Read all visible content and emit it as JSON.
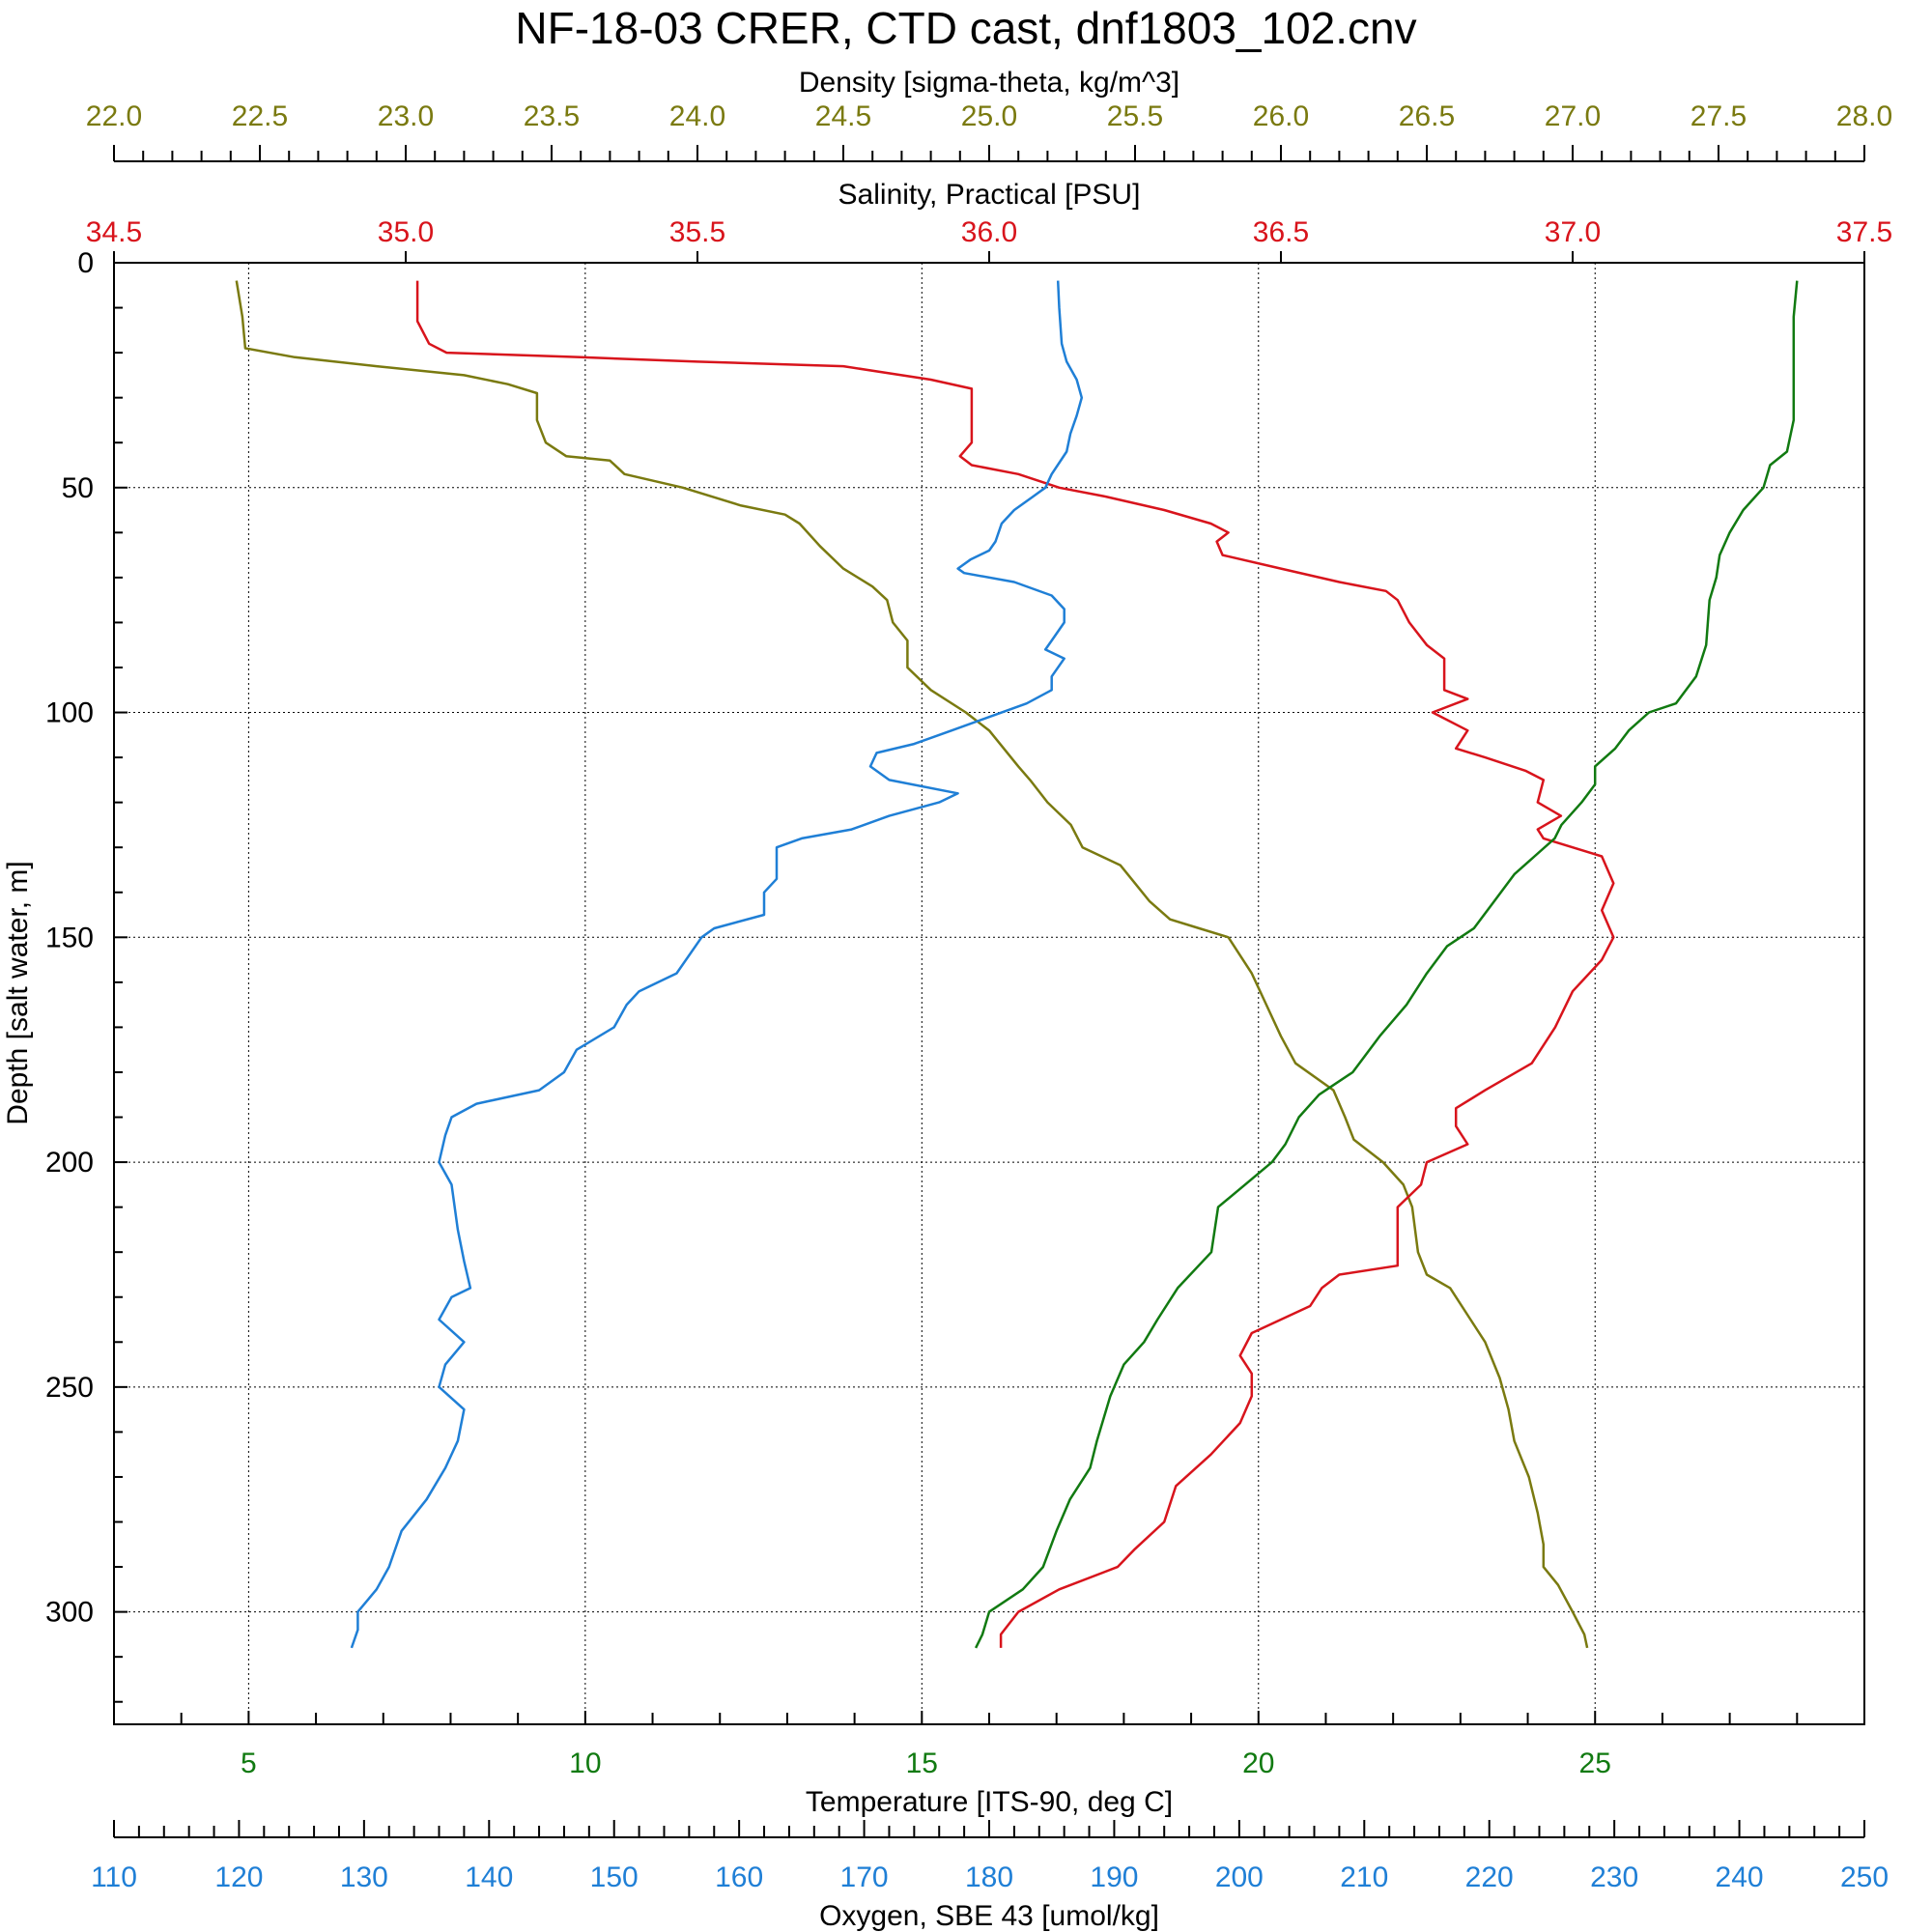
{
  "chart_data": {
    "type": "line",
    "title": "NF-18-03 CRER, CTD cast, dnf1803_102.cnv",
    "grid": true,
    "colors": {
      "density": "#7a7a10",
      "salinity": "#d8141c",
      "temperature": "#117a11",
      "oxygen": "#1f7fd6",
      "frame": "#000000"
    },
    "axes": {
      "depth": {
        "label": "Depth [salt water, m]",
        "range": [
          0,
          325
        ],
        "inverted": true,
        "major_ticks": [
          0,
          50,
          100,
          150,
          200,
          250,
          300
        ],
        "tick_labels": [
          "0",
          "50",
          "100",
          "150",
          "200",
          "250",
          "300"
        ]
      },
      "density": {
        "label": "Density [sigma-theta, kg/m^3]",
        "range": [
          22.0,
          28.0
        ],
        "position": "top-outer",
        "major_ticks": [
          22.0,
          22.5,
          23.0,
          23.5,
          24.0,
          24.5,
          25.0,
          25.5,
          26.0,
          26.5,
          27.0,
          27.5,
          28.0
        ],
        "tick_labels": [
          "22.0",
          "22.5",
          "23.0",
          "23.5",
          "24.0",
          "24.5",
          "25.0",
          "25.5",
          "26.0",
          "26.5",
          "27.0",
          "27.5",
          "28.0"
        ]
      },
      "salinity": {
        "label": "Salinity, Practical [PSU]",
        "range": [
          34.5,
          37.5
        ],
        "position": "top-inner",
        "major_ticks": [
          34.5,
          35.0,
          35.5,
          36.0,
          36.5,
          37.0,
          37.5
        ],
        "tick_labels": [
          "34.5",
          "35.0",
          "35.5",
          "36.0",
          "36.5",
          "37.0",
          "37.5"
        ]
      },
      "temperature": {
        "label": "Temperature [ITS-90, deg C]",
        "range": [
          3,
          29
        ],
        "position": "bottom-inner",
        "major_ticks": [
          5,
          10,
          15,
          20,
          25
        ],
        "tick_labels": [
          "5",
          "10",
          "15",
          "20",
          "25"
        ]
      },
      "oxygen": {
        "label": "Oxygen, SBE 43 [umol/kg]",
        "range": [
          110,
          250
        ],
        "position": "bottom-outer",
        "major_ticks": [
          110,
          120,
          130,
          140,
          150,
          160,
          170,
          180,
          190,
          200,
          210,
          220,
          230,
          240,
          250
        ],
        "tick_labels": [
          "110",
          "120",
          "130",
          "140",
          "150",
          "160",
          "170",
          "180",
          "190",
          "200",
          "210",
          "220",
          "230",
          "240",
          "250"
        ]
      }
    },
    "series": [
      {
        "key": "density",
        "axis": "density",
        "points": [
          [
            22.42,
            4
          ],
          [
            22.44,
            12
          ],
          [
            22.45,
            19
          ],
          [
            22.62,
            21
          ],
          [
            22.9,
            23
          ],
          [
            23.2,
            25
          ],
          [
            23.35,
            27
          ],
          [
            23.45,
            29
          ],
          [
            23.45,
            35
          ],
          [
            23.48,
            40
          ],
          [
            23.55,
            43
          ],
          [
            23.7,
            44
          ],
          [
            23.75,
            47
          ],
          [
            23.95,
            50
          ],
          [
            24.15,
            54
          ],
          [
            24.3,
            56
          ],
          [
            24.35,
            58
          ],
          [
            24.42,
            63
          ],
          [
            24.5,
            68
          ],
          [
            24.6,
            72
          ],
          [
            24.65,
            75
          ],
          [
            24.67,
            80
          ],
          [
            24.72,
            84
          ],
          [
            24.72,
            90
          ],
          [
            24.8,
            95
          ],
          [
            24.92,
            100
          ],
          [
            25.0,
            104
          ],
          [
            25.05,
            108
          ],
          [
            25.1,
            112
          ],
          [
            25.14,
            115
          ],
          [
            25.2,
            120
          ],
          [
            25.28,
            125
          ],
          [
            25.32,
            130
          ],
          [
            25.45,
            134
          ],
          [
            25.5,
            138
          ],
          [
            25.55,
            142
          ],
          [
            25.62,
            146
          ],
          [
            25.72,
            148
          ],
          [
            25.82,
            150
          ],
          [
            25.9,
            158
          ],
          [
            25.95,
            165
          ],
          [
            26.0,
            172
          ],
          [
            26.05,
            178
          ],
          [
            26.18,
            184
          ],
          [
            26.22,
            190
          ],
          [
            26.25,
            195
          ],
          [
            26.35,
            200
          ],
          [
            26.42,
            205
          ],
          [
            26.45,
            210
          ],
          [
            26.47,
            220
          ],
          [
            26.5,
            225
          ],
          [
            26.58,
            228
          ],
          [
            26.65,
            235
          ],
          [
            26.7,
            240
          ],
          [
            26.75,
            248
          ],
          [
            26.78,
            255
          ],
          [
            26.8,
            262
          ],
          [
            26.85,
            270
          ],
          [
            26.88,
            278
          ],
          [
            26.9,
            285
          ],
          [
            26.9,
            290
          ],
          [
            26.95,
            294
          ],
          [
            27.0,
            300
          ],
          [
            27.04,
            305
          ],
          [
            27.05,
            308
          ]
        ]
      },
      {
        "key": "salinity",
        "axis": "salinity",
        "points": [
          [
            35.02,
            4
          ],
          [
            35.02,
            13
          ],
          [
            35.04,
            18
          ],
          [
            35.07,
            20
          ],
          [
            35.3,
            21
          ],
          [
            35.5,
            22
          ],
          [
            35.75,
            23
          ],
          [
            35.9,
            26
          ],
          [
            35.97,
            28
          ],
          [
            35.97,
            36
          ],
          [
            35.97,
            40
          ],
          [
            35.95,
            43
          ],
          [
            35.97,
            45
          ],
          [
            36.05,
            47
          ],
          [
            36.12,
            50
          ],
          [
            36.2,
            52
          ],
          [
            36.3,
            55
          ],
          [
            36.38,
            58
          ],
          [
            36.41,
            60
          ],
          [
            36.39,
            62
          ],
          [
            36.4,
            65
          ],
          [
            36.5,
            68
          ],
          [
            36.6,
            71
          ],
          [
            36.68,
            73
          ],
          [
            36.7,
            75
          ],
          [
            36.72,
            80
          ],
          [
            36.75,
            85
          ],
          [
            36.78,
            88
          ],
          [
            36.78,
            95
          ],
          [
            36.82,
            97
          ],
          [
            36.76,
            100
          ],
          [
            36.82,
            104
          ],
          [
            36.8,
            108
          ],
          [
            36.85,
            110
          ],
          [
            36.92,
            113
          ],
          [
            36.95,
            115
          ],
          [
            36.94,
            120
          ],
          [
            36.98,
            123
          ],
          [
            36.94,
            126
          ],
          [
            36.95,
            128
          ],
          [
            37.05,
            132
          ],
          [
            37.07,
            138
          ],
          [
            37.05,
            144
          ],
          [
            37.07,
            150
          ],
          [
            37.05,
            155
          ],
          [
            37.0,
            162
          ],
          [
            36.97,
            170
          ],
          [
            36.93,
            178
          ],
          [
            36.85,
            184
          ],
          [
            36.8,
            188
          ],
          [
            36.8,
            192
          ],
          [
            36.82,
            196
          ],
          [
            36.75,
            200
          ],
          [
            36.74,
            205
          ],
          [
            36.7,
            210
          ],
          [
            36.7,
            218
          ],
          [
            36.7,
            223
          ],
          [
            36.6,
            225
          ],
          [
            36.57,
            228
          ],
          [
            36.55,
            232
          ],
          [
            36.5,
            235
          ],
          [
            36.45,
            238
          ],
          [
            36.43,
            243
          ],
          [
            36.45,
            247
          ],
          [
            36.45,
            252
          ],
          [
            36.43,
            258
          ],
          [
            36.38,
            265
          ],
          [
            36.32,
            272
          ],
          [
            36.3,
            280
          ],
          [
            36.25,
            286
          ],
          [
            36.22,
            290
          ],
          [
            36.12,
            295
          ],
          [
            36.05,
            300
          ],
          [
            36.02,
            305
          ],
          [
            36.02,
            308
          ]
        ]
      },
      {
        "key": "temperature",
        "axis": "temperature",
        "points": [
          [
            28.0,
            4
          ],
          [
            27.95,
            12
          ],
          [
            27.95,
            24
          ],
          [
            27.95,
            35
          ],
          [
            27.85,
            42
          ],
          [
            27.6,
            45
          ],
          [
            27.5,
            50
          ],
          [
            27.2,
            55
          ],
          [
            27.0,
            60
          ],
          [
            26.85,
            65
          ],
          [
            26.8,
            70
          ],
          [
            26.7,
            75
          ],
          [
            26.65,
            85
          ],
          [
            26.5,
            92
          ],
          [
            26.2,
            98
          ],
          [
            25.8,
            100
          ],
          [
            25.5,
            104
          ],
          [
            25.3,
            108
          ],
          [
            25.0,
            112
          ],
          [
            25.0,
            116
          ],
          [
            24.8,
            120
          ],
          [
            24.5,
            125
          ],
          [
            24.4,
            128
          ],
          [
            24.1,
            132
          ],
          [
            23.8,
            136
          ],
          [
            23.5,
            142
          ],
          [
            23.2,
            148
          ],
          [
            22.8,
            152
          ],
          [
            22.5,
            158
          ],
          [
            22.2,
            165
          ],
          [
            21.8,
            172
          ],
          [
            21.4,
            180
          ],
          [
            20.9,
            185
          ],
          [
            20.6,
            190
          ],
          [
            20.4,
            196
          ],
          [
            20.2,
            200
          ],
          [
            19.8,
            205
          ],
          [
            19.4,
            210
          ],
          [
            19.3,
            220
          ],
          [
            18.8,
            228
          ],
          [
            18.5,
            235
          ],
          [
            18.3,
            240
          ],
          [
            18.0,
            245
          ],
          [
            17.8,
            252
          ],
          [
            17.6,
            262
          ],
          [
            17.5,
            268
          ],
          [
            17.2,
            275
          ],
          [
            17.0,
            282
          ],
          [
            16.8,
            290
          ],
          [
            16.5,
            295
          ],
          [
            16.0,
            300
          ],
          [
            15.9,
            305
          ],
          [
            15.8,
            308
          ]
        ]
      },
      {
        "key": "oxygen",
        "axis": "oxygen",
        "points": [
          [
            185.5,
            4
          ],
          [
            185.6,
            10
          ],
          [
            185.8,
            18
          ],
          [
            186.2,
            22
          ],
          [
            187.0,
            26
          ],
          [
            187.4,
            30
          ],
          [
            187.0,
            34
          ],
          [
            186.5,
            38
          ],
          [
            186.2,
            42
          ],
          [
            185.0,
            47
          ],
          [
            184.5,
            50
          ],
          [
            183.5,
            52
          ],
          [
            182.0,
            55
          ],
          [
            181.0,
            58
          ],
          [
            180.5,
            62
          ],
          [
            180.0,
            64
          ],
          [
            178.5,
            66
          ],
          [
            177.5,
            68
          ],
          [
            178.0,
            69
          ],
          [
            182.0,
            71
          ],
          [
            185.0,
            74
          ],
          [
            186.0,
            77
          ],
          [
            186.0,
            80
          ],
          [
            185.0,
            84
          ],
          [
            184.5,
            86
          ],
          [
            186.0,
            88
          ],
          [
            185.0,
            92
          ],
          [
            185.0,
            95
          ],
          [
            183.0,
            98
          ],
          [
            180.0,
            101
          ],
          [
            177.0,
            104
          ],
          [
            174.0,
            107
          ],
          [
            171.0,
            109
          ],
          [
            170.5,
            112
          ],
          [
            172.0,
            115
          ],
          [
            177.5,
            118
          ],
          [
            176.0,
            120
          ],
          [
            172.0,
            123
          ],
          [
            169.0,
            126
          ],
          [
            165.0,
            128
          ],
          [
            163.0,
            130
          ],
          [
            163.0,
            137
          ],
          [
            162.0,
            140
          ],
          [
            162.0,
            145
          ],
          [
            158.0,
            148
          ],
          [
            157.0,
            150
          ],
          [
            155.0,
            158
          ],
          [
            152.0,
            162
          ],
          [
            151.0,
            165
          ],
          [
            150.0,
            170
          ],
          [
            147.0,
            175
          ],
          [
            146.0,
            180
          ],
          [
            144.0,
            184
          ],
          [
            139.0,
            187
          ],
          [
            137.0,
            190
          ],
          [
            136.5,
            194
          ],
          [
            136.0,
            200
          ],
          [
            137.0,
            205
          ],
          [
            137.5,
            215
          ],
          [
            138.0,
            222
          ],
          [
            138.5,
            228
          ],
          [
            137.0,
            230
          ],
          [
            136.0,
            235
          ],
          [
            138.0,
            240
          ],
          [
            136.5,
            245
          ],
          [
            136.0,
            250
          ],
          [
            138.0,
            255
          ],
          [
            137.5,
            262
          ],
          [
            136.5,
            268
          ],
          [
            135.0,
            275
          ],
          [
            133.0,
            282
          ],
          [
            132.0,
            290
          ],
          [
            131.0,
            295
          ],
          [
            129.5,
            300
          ],
          [
            129.5,
            304
          ],
          [
            129.0,
            308
          ]
        ]
      }
    ]
  }
}
